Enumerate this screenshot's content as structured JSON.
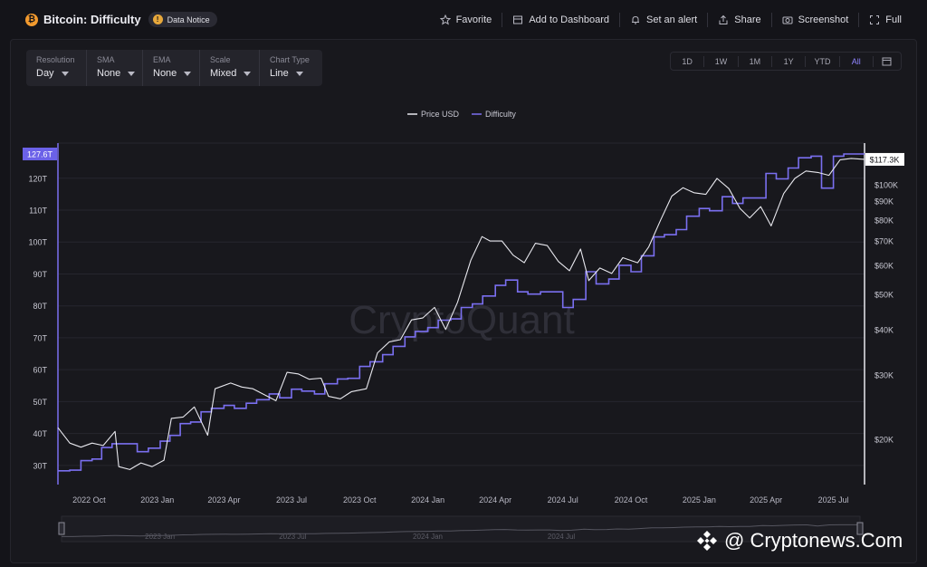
{
  "header": {
    "title": "Bitcoin: Difficulty",
    "notice_label": "Data Notice",
    "actions": {
      "favorite": "Favorite",
      "dashboard": "Add to Dashboard",
      "alert": "Set an alert",
      "share": "Share",
      "screenshot": "Screenshot",
      "full": "Full"
    }
  },
  "controls": [
    {
      "label": "Resolution",
      "value": "Day"
    },
    {
      "label": "SMA",
      "value": "None"
    },
    {
      "label": "EMA",
      "value": "None"
    },
    {
      "label": "Scale",
      "value": "Mixed"
    },
    {
      "label": "Chart Type",
      "value": "Line"
    }
  ],
  "ranges": {
    "items": [
      "1D",
      "1W",
      "1M",
      "1Y",
      "YTD",
      "All"
    ],
    "active": "All"
  },
  "watermark": "CryptoQuant",
  "credit": "@ Cryptonews.Com",
  "colors": {
    "price": "#e8e8ee",
    "difficulty": "#7a6ff0",
    "accent": "#8f84ff",
    "background": "#141419"
  },
  "chart_data": {
    "type": "line",
    "x_type": "date",
    "x_range": [
      "2022-08-20",
      "2025-08-12"
    ],
    "x_ticks": [
      "2022 Oct",
      "2023 Jan",
      "2023 Apr",
      "2023 Jul",
      "2023 Oct",
      "2024 Jan",
      "2024 Apr",
      "2024 Jul",
      "2024 Oct",
      "2025 Jan",
      "2025 Apr",
      "2025 Jul"
    ],
    "navigator_ticks": [
      "2023 Jan",
      "2023 Jul",
      "2024 Jan",
      "2024 Jul"
    ],
    "left_axis": {
      "ticks": [
        "30T",
        "40T",
        "50T",
        "60T",
        "70T",
        "80T",
        "90T",
        "100T",
        "110T",
        "120T"
      ],
      "range": [
        24,
        131
      ],
      "unit": "T"
    },
    "right_axis": {
      "scale": "log",
      "ticks": [
        "$20K",
        "$30K",
        "$40K",
        "$50K",
        "$60K",
        "$70K",
        "$80K",
        "$90K",
        "$100K"
      ],
      "range": [
        15,
        130
      ]
    },
    "legend": [
      "Price USD",
      "Difficulty"
    ],
    "legend_position": "top-center",
    "last_labels": {
      "difficulty": "127.6T",
      "price": "$117.3K"
    },
    "series": [
      {
        "name": "Difficulty",
        "axis": "left",
        "x": [
          "2022-08-20",
          "2022-09-05",
          "2022-09-20",
          "2022-10-05",
          "2022-10-18",
          "2022-11-01",
          "2022-12-05",
          "2022-12-20",
          "2023-01-05",
          "2023-01-18",
          "2023-02-01",
          "2023-02-15",
          "2023-03-01",
          "2023-03-15",
          "2023-04-01",
          "2023-04-15",
          "2023-05-01",
          "2023-05-15",
          "2023-06-01",
          "2023-06-15",
          "2023-07-01",
          "2023-07-15",
          "2023-08-01",
          "2023-08-15",
          "2023-09-01",
          "2023-09-15",
          "2023-10-01",
          "2023-10-15",
          "2023-11-01",
          "2023-11-15",
          "2023-12-01",
          "2023-12-15",
          "2024-01-01",
          "2024-01-15",
          "2024-02-01",
          "2024-02-15",
          "2024-03-01",
          "2024-03-15",
          "2024-04-01",
          "2024-04-15",
          "2024-05-01",
          "2024-05-15",
          "2024-06-01",
          "2024-06-15",
          "2024-07-01",
          "2024-07-15",
          "2024-08-01",
          "2024-08-15",
          "2024-09-01",
          "2024-09-15",
          "2024-10-01",
          "2024-10-15",
          "2024-11-01",
          "2024-11-15",
          "2024-12-01",
          "2024-12-15",
          "2025-01-01",
          "2025-01-15",
          "2025-02-01",
          "2025-02-15",
          "2025-03-01",
          "2025-03-15",
          "2025-04-01",
          "2025-04-15",
          "2025-05-01",
          "2025-05-15",
          "2025-06-01",
          "2025-06-15",
          "2025-07-01",
          "2025-07-15",
          "2025-08-12"
        ],
        "values": [
          28.3,
          28.5,
          31.5,
          32.0,
          35.6,
          36.8,
          34.3,
          35.4,
          37.6,
          39.4,
          43.1,
          43.6,
          46.8,
          47.9,
          48.8,
          47.9,
          49.5,
          50.6,
          52.4,
          51.2,
          53.9,
          53.3,
          52.4,
          55.6,
          57.1,
          57.3,
          61.0,
          62.5,
          64.7,
          67.3,
          70.3,
          72.0,
          73.2,
          75.5,
          75.9,
          79.5,
          80.6,
          83.1,
          86.4,
          88.1,
          84.4,
          83.7,
          84.4,
          84.4,
          79.5,
          82.0,
          90.7,
          86.9,
          88.4,
          92.7,
          90.7,
          95.7,
          101.6,
          102.3,
          103.9,
          108.1,
          110.5,
          109.8,
          114.2,
          112.1,
          113.8,
          113.8,
          121.5,
          119.8,
          123.2,
          126.4,
          126.9,
          116.9,
          126.9,
          127.6,
          127.6
        ]
      },
      {
        "name": "Price USD",
        "axis": "right",
        "x": [
          "2022-08-20",
          "2022-09-05",
          "2022-09-20",
          "2022-10-05",
          "2022-10-20",
          "2022-11-05",
          "2022-11-10",
          "2022-11-25",
          "2022-12-10",
          "2022-12-25",
          "2023-01-10",
          "2023-01-20",
          "2023-02-05",
          "2023-02-20",
          "2023-03-10",
          "2023-03-20",
          "2023-04-10",
          "2023-04-25",
          "2023-05-10",
          "2023-05-25",
          "2023-06-10",
          "2023-06-25",
          "2023-07-10",
          "2023-07-25",
          "2023-08-10",
          "2023-08-20",
          "2023-09-05",
          "2023-09-20",
          "2023-10-10",
          "2023-10-25",
          "2023-11-10",
          "2023-11-25",
          "2023-12-10",
          "2023-12-25",
          "2024-01-10",
          "2024-01-25",
          "2024-02-10",
          "2024-02-28",
          "2024-03-14",
          "2024-03-25",
          "2024-04-10",
          "2024-04-25",
          "2024-05-10",
          "2024-05-25",
          "2024-06-10",
          "2024-06-25",
          "2024-07-10",
          "2024-07-25",
          "2024-08-05",
          "2024-08-20",
          "2024-09-05",
          "2024-09-20",
          "2024-10-10",
          "2024-10-25",
          "2024-11-10",
          "2024-11-25",
          "2024-12-10",
          "2024-12-25",
          "2025-01-10",
          "2025-01-25",
          "2025-02-10",
          "2025-02-25",
          "2025-03-10",
          "2025-03-25",
          "2025-04-08",
          "2025-04-25",
          "2025-05-10",
          "2025-05-25",
          "2025-06-10",
          "2025-06-25",
          "2025-07-10",
          "2025-07-25",
          "2025-08-12"
        ],
        "values": [
          21.5,
          19.5,
          19.0,
          19.5,
          19.2,
          21.0,
          16.8,
          16.5,
          17.2,
          16.8,
          17.5,
          22.8,
          23.0,
          24.5,
          20.5,
          27.5,
          28.5,
          27.8,
          27.5,
          26.5,
          25.5,
          30.5,
          30.2,
          29.2,
          29.4,
          26.2,
          25.8,
          27.0,
          27.5,
          34.5,
          37.0,
          37.5,
          42.5,
          43.0,
          46.0,
          40.0,
          47.5,
          62.0,
          72.0,
          70.0,
          70.0,
          64.0,
          61.0,
          69.0,
          68.0,
          61.5,
          58.0,
          66.5,
          54.5,
          59.0,
          57.0,
          63.0,
          61.0,
          67.5,
          80.0,
          93.0,
          98.0,
          95.0,
          94.0,
          104.0,
          97.5,
          86.0,
          81.0,
          87.0,
          77.0,
          94.5,
          104.0,
          109.0,
          108.0,
          106.0,
          117.0,
          118.0,
          117.3
        ]
      }
    ]
  }
}
